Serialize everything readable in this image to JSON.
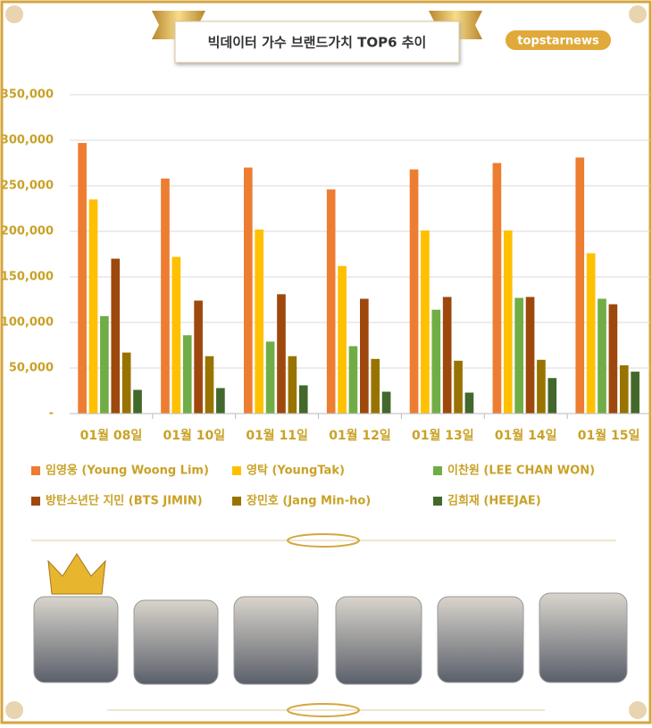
{
  "chart_data": {
    "type": "bar",
    "title": "빅데이터 가수 브랜드가치 TOP6 추이",
    "logo": "topstarnews",
    "categories": [
      "01월 08일",
      "01월 10일",
      "01월 11일",
      "01월 12일",
      "01월 13일",
      "01월 14일",
      "01월 15일"
    ],
    "series": [
      {
        "name": "임영웅 (Young Woong Lim)",
        "color": "#ed7d31",
        "values": [
          297000,
          258000,
          270000,
          246000,
          268000,
          275000,
          281000
        ]
      },
      {
        "name": "영탁 (YoungTak)",
        "color": "#ffc000",
        "values": [
          235000,
          172000,
          202000,
          162000,
          201000,
          201000,
          176000
        ]
      },
      {
        "name": "이찬원 (LEE CHAN WON)",
        "color": "#70ad47",
        "values": [
          107000,
          86000,
          79000,
          74000,
          114000,
          127000,
          126000
        ]
      },
      {
        "name": "방탄소년단 지민 (BTS JIMIN)",
        "color": "#9e480e",
        "values": [
          170000,
          124000,
          131000,
          126000,
          128000,
          128000,
          120000
        ]
      },
      {
        "name": "장민호 (Jang Min-ho)",
        "color": "#997300",
        "values": [
          67000,
          63000,
          63000,
          60000,
          58000,
          59000,
          53000
        ]
      },
      {
        "name": "김희재 (HEEJAE)",
        "color": "#43682b",
        "values": [
          26000,
          28000,
          31000,
          24000,
          23000,
          39000,
          46000
        ]
      }
    ],
    "ylim": [
      0,
      350000
    ],
    "yticks": [
      {
        "value": 0,
        "label": "-"
      },
      {
        "value": 50000,
        "label": "50,000"
      },
      {
        "value": 100000,
        "label": "100,000"
      },
      {
        "value": 150000,
        "label": "150,000"
      },
      {
        "value": 200000,
        "label": "200,000"
      },
      {
        "value": 250000,
        "label": "250,000"
      },
      {
        "value": 300000,
        "label": "300,000"
      },
      {
        "value": 350000,
        "label": "350,000"
      }
    ],
    "grid": true
  }
}
